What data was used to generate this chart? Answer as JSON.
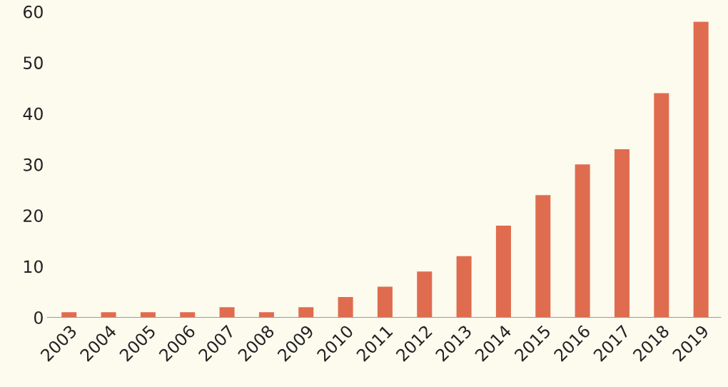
{
  "chart_data": {
    "type": "bar",
    "categories": [
      "2003",
      "2004",
      "2005",
      "2006",
      "2007",
      "2008",
      "2009",
      "2010",
      "2011",
      "2012",
      "2013",
      "2014",
      "2015",
      "2016",
      "2017",
      "2018",
      "2019"
    ],
    "values": [
      1,
      1,
      1,
      1,
      2,
      1,
      2,
      4,
      6,
      9,
      12,
      18,
      24,
      30,
      33,
      44,
      58
    ],
    "color": "#e06c4f",
    "ylim": [
      0,
      60
    ],
    "yticks": [
      0,
      10,
      20,
      30,
      40,
      50,
      60
    ],
    "grid": false,
    "legend": false
  }
}
